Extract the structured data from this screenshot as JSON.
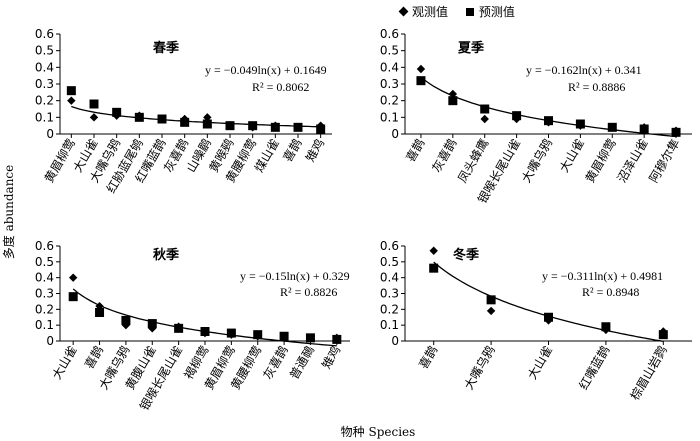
{
  "legend": {
    "observed": "观测值",
    "predicted": "预测值"
  },
  "axes": {
    "ylabel": "多度 abundance",
    "xlabel": "物种 Species"
  },
  "chart_data": [
    {
      "type": "scatter",
      "panel": "spring",
      "title": "春季",
      "equation": "y = −0.049ln(x) + 0.1649",
      "r2": "R² = 0.8062",
      "ylim": [
        0,
        0.6
      ],
      "yticks": [
        "0",
        "0.1",
        "0.2",
        "0.3",
        "0.4",
        "0.5",
        "0.6"
      ],
      "trend": {
        "a": -0.049,
        "b": 0.1649
      },
      "categories": [
        "黄眉柳莺",
        "大山雀",
        "大嘴乌鸦",
        "红胁蓝尾鸲",
        "红嘴蓝鹊",
        "灰喜鹊",
        "山噪鹛",
        "黄喉鹀",
        "黄腰柳莺",
        "煤山雀",
        "喜鹊",
        "雉鸡"
      ],
      "series": [
        {
          "name": "观测值",
          "marker": "diamond",
          "values": [
            0.2,
            0.1,
            0.11,
            0.11,
            0.09,
            0.09,
            0.1,
            0.05,
            0.04,
            0.05,
            0.04,
            0.05
          ]
        },
        {
          "name": "预测值",
          "marker": "square",
          "values": [
            0.26,
            0.18,
            0.13,
            0.1,
            0.09,
            0.07,
            0.06,
            0.05,
            0.05,
            0.04,
            0.04,
            0.03
          ]
        }
      ]
    },
    {
      "type": "scatter",
      "panel": "summer",
      "title": "夏季",
      "equation": "y = −0.162ln(x) + 0.341",
      "r2": "R² = 0.8886",
      "ylim": [
        0,
        0.6
      ],
      "yticks": [
        "0",
        "0.1",
        "0.2",
        "0.3",
        "0.4",
        "0.5",
        "0.6"
      ],
      "trend": {
        "a": -0.162,
        "b": 0.341
      },
      "categories": [
        "喜鹊",
        "灰喜鹊",
        "凤头蜂鹰",
        "银喉长尾山雀",
        "大嘴乌鸦",
        "大山雀",
        "黄眉柳莺",
        "沼泽山雀",
        "阿穆尔隼"
      ],
      "series": [
        {
          "name": "观测值",
          "marker": "diamond",
          "values": [
            0.39,
            0.24,
            0.09,
            0.09,
            0.07,
            0.05,
            0.04,
            0.04,
            0.02
          ]
        },
        {
          "name": "预测值",
          "marker": "square",
          "values": [
            0.32,
            0.2,
            0.15,
            0.11,
            0.08,
            0.06,
            0.04,
            0.03,
            0.01
          ]
        }
      ]
    },
    {
      "type": "scatter",
      "panel": "autumn",
      "title": "秋季",
      "equation": "y = −0.15ln(x) + 0.329",
      "r2": "R² = 0.8826",
      "ylim": [
        0,
        0.6
      ],
      "yticks": [
        "0",
        "0.1",
        "0.2",
        "0.3",
        "0.4",
        "0.5",
        "0.6"
      ],
      "trend": {
        "a": -0.15,
        "b": 0.329
      },
      "categories": [
        "大山雀",
        "喜鹊",
        "大嘴乌鸦",
        "黄腹山雀",
        "银喉长尾山雀",
        "褐柳莺",
        "黄眉柳莺",
        "黄腰柳莺",
        "灰喜鹊",
        "普通鳾",
        "雉鸡"
      ],
      "series": [
        {
          "name": "观测值",
          "marker": "diamond",
          "values": [
            0.4,
            0.22,
            0.1,
            0.08,
            0.09,
            0.05,
            0.04,
            0.03,
            0.03,
            0.02,
            0.02
          ]
        },
        {
          "name": "预测值",
          "marker": "square",
          "values": [
            0.28,
            0.18,
            0.13,
            0.11,
            0.08,
            0.06,
            0.05,
            0.04,
            0.03,
            0.02,
            0.01
          ]
        }
      ]
    },
    {
      "type": "scatter",
      "panel": "winter",
      "title": "冬季",
      "equation": "y = −0.311ln(x) + 0.4981",
      "r2": "R² = 0.8948",
      "ylim": [
        0,
        0.6
      ],
      "yticks": [
        "0",
        "0.1",
        "0.2",
        "0.3",
        "0.4",
        "0.5",
        "0.6"
      ],
      "trend": {
        "a": -0.311,
        "b": 0.4981
      },
      "categories": [
        "喜鹊",
        "大嘴乌鸦",
        "大山雀",
        "红嘴蓝鹊",
        "棕眉山岩鹨"
      ],
      "series": [
        {
          "name": "观测值",
          "marker": "diamond",
          "values": [
            0.57,
            0.19,
            0.13,
            0.07,
            0.06
          ]
        },
        {
          "name": "预测值",
          "marker": "square",
          "values": [
            0.46,
            0.26,
            0.15,
            0.09,
            0.04
          ]
        }
      ]
    }
  ]
}
